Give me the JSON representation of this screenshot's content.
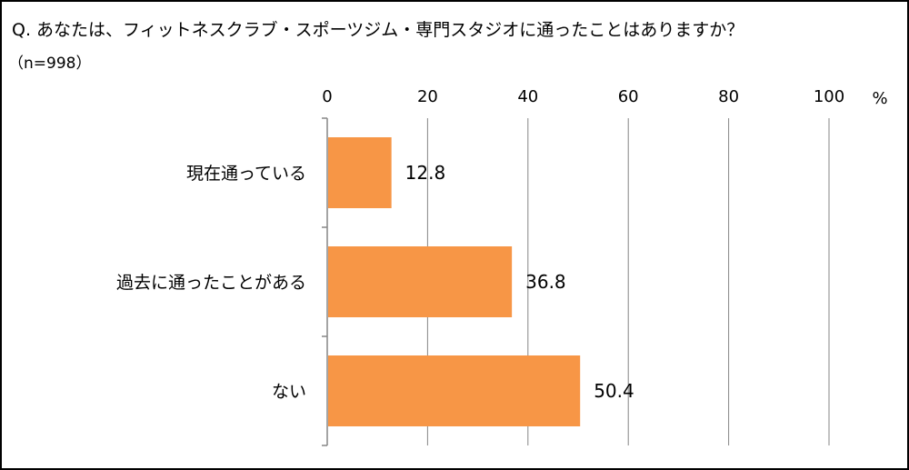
{
  "question": "Q. あなたは、フィットネスクラブ・スポーツジム・専門スタジオに通ったことはありますか？",
  "sample_size": "（n=998）",
  "chart_data": {
    "type": "bar",
    "orientation": "horizontal",
    "categories": [
      "現在通っている",
      "過去に通ったことがある",
      "ない"
    ],
    "values": [
      12.8,
      36.8,
      50.4
    ],
    "data_labels": [
      "12.8",
      "36.8",
      "50.4"
    ],
    "xlim": [
      0,
      100
    ],
    "xticks": [
      0,
      20,
      40,
      60,
      80,
      100
    ],
    "unit": "%",
    "grid": true,
    "bar_color": "#F79646"
  }
}
